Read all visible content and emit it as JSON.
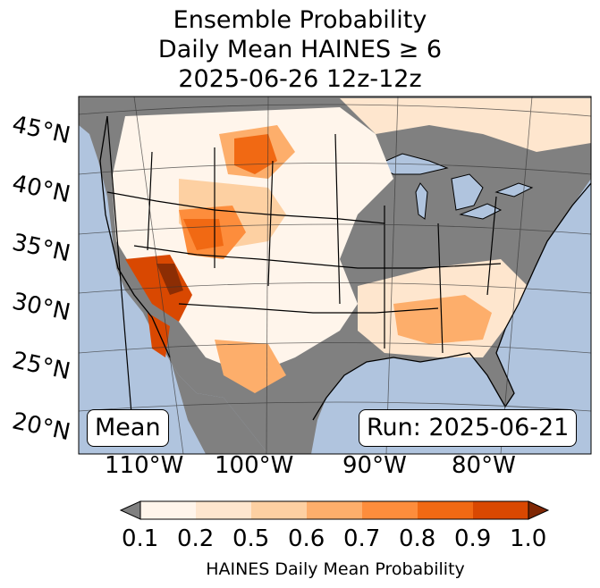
{
  "title": {
    "line1": "Ensemble Probability",
    "line2": "Daily Mean HAINES ≥ 6",
    "line3": "2025-06-26 12z-12z"
  },
  "map": {
    "lat_labels": [
      "45°N",
      "40°N",
      "35°N",
      "30°N",
      "25°N",
      "20°N"
    ],
    "lon_labels": [
      "110°W",
      "100°W",
      "90°W",
      "80°W"
    ],
    "stat_label": "Mean",
    "run_label": "Run: 2025-06-21",
    "colors": {
      "ocean": "#b0c4de",
      "masked": "#808080",
      "lakes": "#b0c4de"
    }
  },
  "colorbar": {
    "title": "HAINES Daily Mean Probability",
    "ticks": [
      "0.1",
      "0.2",
      "0.5",
      "0.6",
      "0.7",
      "0.8",
      "0.9",
      "1.0"
    ],
    "colors": [
      "#fff5eb",
      "#fee6ce",
      "#fdd0a2",
      "#fdae6b",
      "#fd8d3c",
      "#f16913",
      "#d94801",
      "#8c2d04"
    ],
    "under_color": "#808080",
    "over_color": "#7f2704"
  }
}
